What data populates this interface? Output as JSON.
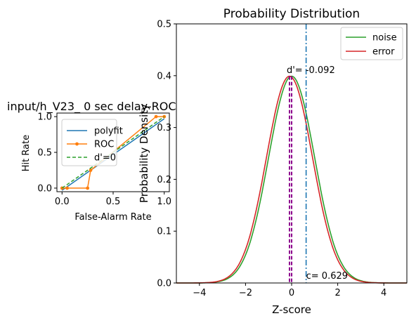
{
  "colors": {
    "noise": "#2ca02c",
    "error": "#d62728",
    "polyfit": "#1f77b4",
    "roc": "#ff7f0e",
    "chance": "#2ca02c",
    "criterion": "#1f77b4",
    "means": "#8b008b"
  },
  "chart_data": [
    {
      "type": "line",
      "title": "input/h_V23_ 0 sec delay-ROC",
      "xlabel": "False-Alarm Rate",
      "ylabel": "Hit Rate",
      "xlim": [
        -0.05,
        1.05
      ],
      "ylim": [
        -0.05,
        1.05
      ],
      "xticks": [
        0.0,
        0.5,
        1.0
      ],
      "xtick_labels": [
        "0.0",
        "0.5",
        "1.0"
      ],
      "yticks": [
        0.0,
        0.5,
        1.0
      ],
      "ytick_labels": [
        "0.0",
        "0.5",
        "1.0"
      ],
      "legend_position": "upper-left",
      "series": [
        {
          "name": "polyfit",
          "style": "solid",
          "x": [
            0,
            0.25,
            0.5,
            0.75,
            1.0
          ],
          "y": [
            -0.03,
            0.22,
            0.47,
            0.72,
            0.97
          ]
        },
        {
          "name": "ROC",
          "style": "solid-markers",
          "x": [
            0.0,
            0.05,
            0.25,
            0.28,
            0.92,
            1.0
          ],
          "y": [
            0.0,
            0.0,
            0.0,
            0.25,
            1.0,
            1.0
          ]
        },
        {
          "name": "d'=0",
          "style": "dashed",
          "x": [
            0,
            1
          ],
          "y": [
            0,
            1
          ]
        }
      ]
    },
    {
      "type": "line",
      "title": "Probability Distribution",
      "xlabel": "Z-score",
      "ylabel": "Probability Density",
      "xlim": [
        -5,
        5
      ],
      "ylim": [
        0,
        0.5
      ],
      "xticks": [
        -4,
        -2,
        0,
        2,
        4
      ],
      "xtick_labels": [
        "−4",
        "−2",
        "0",
        "2",
        "4"
      ],
      "yticks": [
        0.0,
        0.1,
        0.2,
        0.3,
        0.4,
        0.5
      ],
      "ytick_labels": [
        "0.0",
        "0.1",
        "0.2",
        "0.3",
        "0.4",
        "0.5"
      ],
      "legend_position": "upper-right",
      "series": [
        {
          "name": "noise",
          "distribution": "normal",
          "mean": 0.0,
          "sd": 1
        },
        {
          "name": "error",
          "distribution": "normal",
          "mean": -0.092,
          "sd": 1
        }
      ],
      "vlines": [
        {
          "x": 0.629,
          "style": "dashdot",
          "role": "criterion"
        },
        {
          "x": 0.0,
          "style": "dashed",
          "role": "noise-mean"
        },
        {
          "x": -0.092,
          "style": "dashed",
          "role": "error-mean"
        }
      ],
      "annotations": [
        {
          "text": "d'= -0.092",
          "x": -0.092,
          "y": 0.405
        },
        {
          "text": "c= 0.629",
          "x": 0.629,
          "y": 0.008
        }
      ]
    }
  ]
}
